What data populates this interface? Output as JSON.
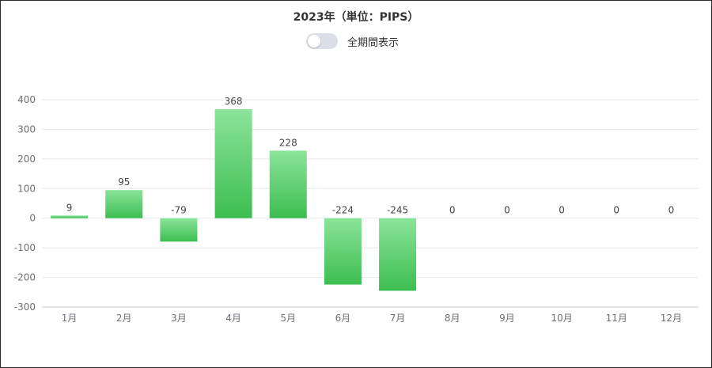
{
  "title": "2023年（単位：PIPS）",
  "toggle": {
    "label": "全期間表示",
    "on": false
  },
  "colors": {
    "bar_top": "#8be49a",
    "bar_bottom": "#3dbe50",
    "grid": "#e6e8ee",
    "axis": "#c8cad0"
  },
  "chart_data": {
    "type": "bar",
    "title": "2023年（単位：PIPS）",
    "xlabel": "",
    "ylabel": "",
    "categories": [
      "1月",
      "2月",
      "3月",
      "4月",
      "5月",
      "6月",
      "7月",
      "8月",
      "9月",
      "10月",
      "11月",
      "12月"
    ],
    "values": [
      9,
      95,
      -79,
      368,
      228,
      -224,
      -245,
      0,
      0,
      0,
      0,
      0
    ],
    "ylim": [
      -300,
      400
    ],
    "yticks": [
      400,
      300,
      200,
      100,
      0,
      -100,
      -200,
      -300
    ],
    "grid": true,
    "data_labels": true
  }
}
